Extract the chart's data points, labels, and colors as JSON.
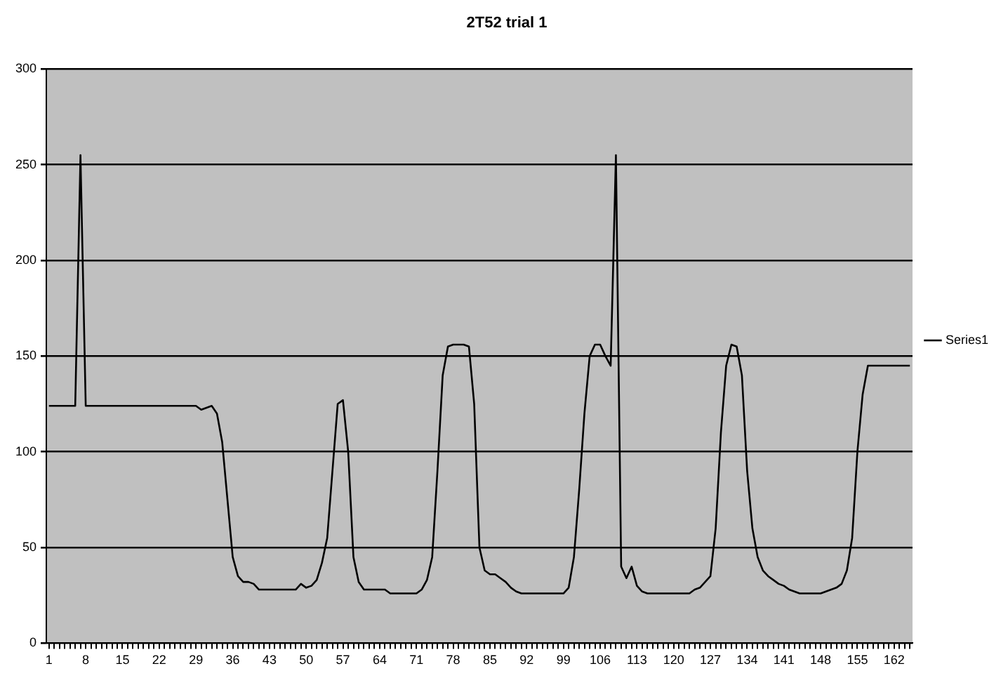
{
  "chart_data": {
    "type": "line",
    "title": "2T52 trial 1",
    "categories": [
      "1",
      null,
      null,
      null,
      null,
      null,
      null,
      "8",
      null,
      null,
      null,
      null,
      null,
      null,
      "15",
      null,
      null,
      null,
      null,
      null,
      null,
      "22",
      null,
      null,
      null,
      null,
      null,
      null,
      "29",
      null,
      null,
      null,
      null,
      null,
      null,
      "36",
      null,
      null,
      null,
      null,
      null,
      null,
      "43",
      null,
      null,
      null,
      null,
      null,
      null,
      "50",
      null,
      null,
      null,
      null,
      null,
      null,
      "57",
      null,
      null,
      null,
      null,
      null,
      null,
      "64",
      null,
      null,
      null,
      null,
      null,
      null,
      "71",
      null,
      null,
      null,
      null,
      null,
      null,
      "78",
      null,
      null,
      null,
      null,
      null,
      null,
      "85",
      null,
      null,
      null,
      null,
      null,
      null,
      "92",
      null,
      null,
      null,
      null,
      null,
      null,
      "99",
      null,
      null,
      null,
      null,
      null,
      null,
      "106",
      null,
      null,
      null,
      null,
      null,
      null,
      "113",
      null,
      null,
      null,
      null,
      null,
      null,
      "120",
      null,
      null,
      null,
      null,
      null,
      null,
      "127",
      null,
      null,
      null,
      null,
      null,
      null,
      "134",
      null,
      null,
      null,
      null,
      null,
      null,
      "141",
      null,
      null,
      null,
      null,
      null,
      null,
      "148",
      null,
      null,
      null,
      null,
      null,
      null,
      "155",
      null,
      null,
      null,
      null,
      null,
      null,
      "162",
      null,
      null,
      null
    ],
    "series": [
      {
        "name": "Series1",
        "color": "#000000",
        "values": [
          124,
          124,
          124,
          124,
          124,
          124,
          255,
          124,
          124,
          124,
          124,
          124,
          124,
          124,
          124,
          124,
          124,
          124,
          124,
          124,
          124,
          124,
          124,
          124,
          124,
          124,
          124,
          124,
          124,
          122,
          123,
          124,
          120,
          105,
          75,
          45,
          35,
          32,
          32,
          31,
          28,
          28,
          28,
          28,
          28,
          28,
          28,
          28,
          31,
          29,
          30,
          33,
          42,
          55,
          90,
          125,
          127,
          100,
          45,
          32,
          28,
          28,
          28,
          28,
          28,
          26,
          26,
          26,
          26,
          26,
          26,
          28,
          33,
          45,
          90,
          140,
          155,
          156,
          156,
          156,
          155,
          125,
          50,
          38,
          36,
          36,
          34,
          32,
          29,
          27,
          26,
          26,
          26,
          26,
          26,
          26,
          26,
          26,
          26,
          29,
          45,
          80,
          120,
          150,
          156,
          156,
          150,
          145,
          255,
          40,
          34,
          40,
          30,
          27,
          26,
          26,
          26,
          26,
          26,
          26,
          26,
          26,
          26,
          28,
          29,
          32,
          35,
          60,
          110,
          145,
          156,
          155,
          140,
          90,
          60,
          45,
          38,
          35,
          33,
          31,
          30,
          28,
          27,
          26,
          26,
          26,
          26,
          26,
          27,
          28,
          29,
          31,
          38,
          55,
          100,
          130,
          145,
          145,
          145,
          145,
          145,
          145,
          145,
          145,
          145
        ]
      }
    ],
    "ylim": [
      0,
      300
    ],
    "yticks": [
      0,
      50,
      100,
      150,
      200,
      250,
      300
    ],
    "grid": "y",
    "legend": "right",
    "marker": "none",
    "line_style": "solid"
  }
}
